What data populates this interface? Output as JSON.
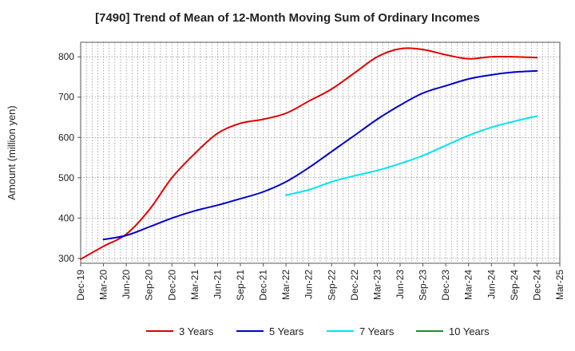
{
  "chart_data": {
    "type": "line",
    "title": "[7490]  Trend of Mean of 12-Month Moving Sum of Ordinary Incomes",
    "ylabel": "Amount (million yen)",
    "xlabel": "",
    "ylim": [
      288,
      836
    ],
    "yticks": [
      300,
      400,
      500,
      600,
      700,
      800
    ],
    "ytick_labels": [
      "300",
      "400",
      "500",
      "600",
      "700",
      "800"
    ],
    "categories": [
      "Dec-19",
      "Mar-20",
      "Jun-20",
      "Sep-20",
      "Dec-20",
      "Mar-21",
      "Jun-21",
      "Sep-21",
      "Dec-21",
      "Mar-22",
      "Jun-22",
      "Sep-22",
      "Dec-22",
      "Mar-23",
      "Jun-23",
      "Sep-23",
      "Dec-23",
      "Mar-24",
      "Jun-24",
      "Sep-24",
      "Dec-24",
      "Mar-25"
    ],
    "grid": true,
    "legend_position": "bottom",
    "series": [
      {
        "name": "3 Years",
        "color": "#e00000",
        "values": [
          298,
          330,
          360,
          420,
          500,
          560,
          610,
          635,
          645,
          660,
          690,
          720,
          760,
          800,
          820,
          818,
          805,
          795,
          800,
          800,
          798,
          null
        ]
      },
      {
        "name": "5 Years",
        "color": "#0000cc",
        "values": [
          null,
          347,
          357,
          378,
          400,
          418,
          432,
          448,
          465,
          490,
          525,
          565,
          605,
          645,
          680,
          710,
          728,
          745,
          755,
          762,
          765,
          null
        ]
      },
      {
        "name": "7 Years",
        "color": "#00e5ee",
        "values": [
          null,
          null,
          null,
          null,
          null,
          null,
          null,
          null,
          null,
          457,
          470,
          490,
          505,
          518,
          535,
          555,
          580,
          605,
          625,
          640,
          653,
          null
        ]
      },
      {
        "name": "10 Years",
        "color": "#228b22",
        "values": [
          null,
          null,
          null,
          null,
          null,
          null,
          null,
          null,
          null,
          null,
          null,
          null,
          null,
          null,
          null,
          null,
          null,
          null,
          null,
          null,
          null,
          null
        ]
      }
    ]
  }
}
